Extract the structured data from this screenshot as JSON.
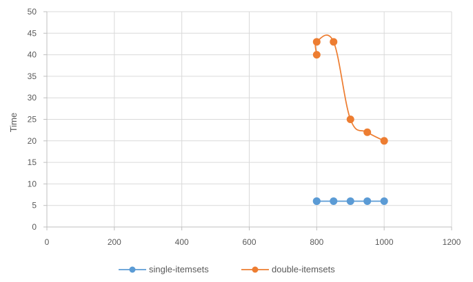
{
  "chart_data": {
    "type": "scatter",
    "title": "",
    "xlabel": "",
    "ylabel": "Time",
    "xlim": [
      0,
      1200
    ],
    "ylim": [
      0,
      50
    ],
    "x_ticks": [
      0,
      200,
      400,
      600,
      800,
      1000,
      1200
    ],
    "y_ticks": [
      0,
      5,
      10,
      15,
      20,
      25,
      30,
      35,
      40,
      45,
      50
    ],
    "grid": true,
    "legend_position": "bottom",
    "smooth_lines": true,
    "series": [
      {
        "name": "single-itemsets",
        "color": "#5b9bd5",
        "points": [
          [
            800,
            6
          ],
          [
            800,
            6
          ],
          [
            850,
            6
          ],
          [
            900,
            6
          ],
          [
            950,
            6
          ],
          [
            1000,
            6
          ]
        ]
      },
      {
        "name": "double-itemsets",
        "color": "#ed7d31",
        "points": [
          [
            800,
            40
          ],
          [
            800,
            43
          ],
          [
            850,
            43
          ],
          [
            900,
            25
          ],
          [
            950,
            22
          ],
          [
            1000,
            20
          ]
        ]
      }
    ]
  }
}
